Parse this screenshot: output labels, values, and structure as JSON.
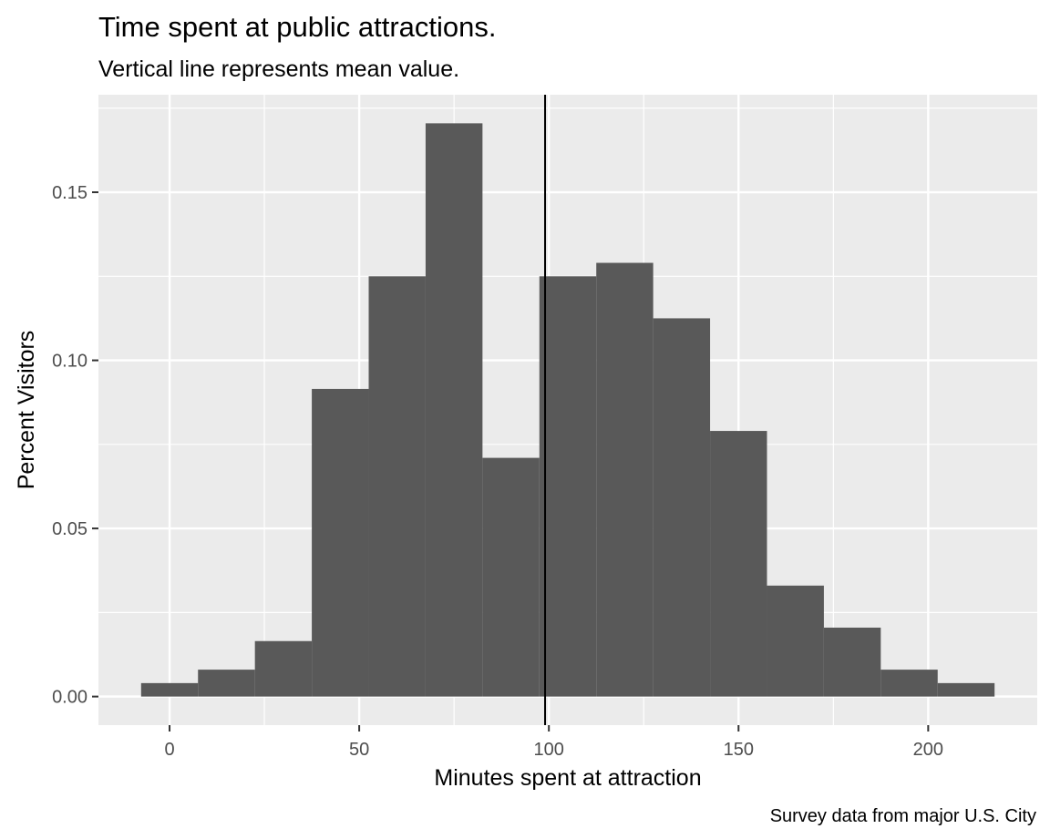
{
  "chart_data": {
    "type": "bar",
    "subtype": "histogram",
    "title": "Time spent at public attractions.",
    "subtitle": "Vertical line represents mean value.",
    "xlabel": "Minutes spent at attraction",
    "ylabel": "Percent Visitors",
    "caption": "Survey data from major U.S. City",
    "bin_width": 15,
    "bins": [
      {
        "x0": -7.5,
        "x1": 7.5,
        "value": 0.004
      },
      {
        "x0": 7.5,
        "x1": 22.5,
        "value": 0.008
      },
      {
        "x0": 22.5,
        "x1": 37.5,
        "value": 0.0165
      },
      {
        "x0": 37.5,
        "x1": 52.5,
        "value": 0.0915
      },
      {
        "x0": 52.5,
        "x1": 67.5,
        "value": 0.125
      },
      {
        "x0": 67.5,
        "x1": 82.5,
        "value": 0.1705
      },
      {
        "x0": 82.5,
        "x1": 97.5,
        "value": 0.071
      },
      {
        "x0": 97.5,
        "x1": 112.5,
        "value": 0.125
      },
      {
        "x0": 112.5,
        "x1": 127.5,
        "value": 0.129
      },
      {
        "x0": 127.5,
        "x1": 142.5,
        "value": 0.1125
      },
      {
        "x0": 142.5,
        "x1": 157.5,
        "value": 0.079
      },
      {
        "x0": 157.5,
        "x1": 172.5,
        "value": 0.033
      },
      {
        "x0": 172.5,
        "x1": 187.5,
        "value": 0.0205
      },
      {
        "x0": 187.5,
        "x1": 202.5,
        "value": 0.008
      },
      {
        "x0": 202.5,
        "x1": 217.5,
        "value": 0.004
      }
    ],
    "mean_line": 99,
    "xlim": [
      -18.75,
      228.75
    ],
    "ylim": [
      -0.0085,
      0.179
    ],
    "x_ticks": [
      0,
      50,
      100,
      150,
      200
    ],
    "x_tick_labels": [
      "0",
      "50",
      "100",
      "150",
      "200"
    ],
    "y_ticks": [
      0,
      0.05,
      0.1,
      0.15
    ],
    "y_tick_labels": [
      "0.00",
      "0.05",
      "0.10",
      "0.15"
    ],
    "grid": true,
    "legend": "none",
    "colors": {
      "panel_background": "#ebebeb",
      "gridline": "#ffffff",
      "bar_fill": "#595959",
      "mean_line": "#000000",
      "tick_label": "#4d4d4d",
      "tick_mark": "#333333"
    }
  }
}
